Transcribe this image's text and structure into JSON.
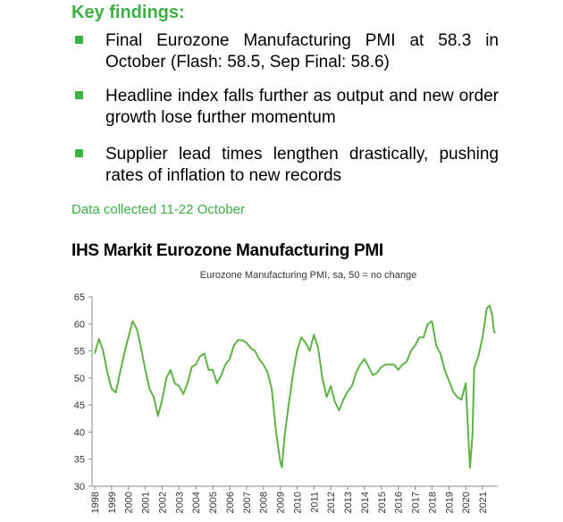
{
  "findings": {
    "heading": "Key findings:",
    "bullets": [
      "Final Eurozone Manufacturing PMI at 58.3 in October (Flash: 58.5, Sep Final: 58.6)",
      "Headline index falls further as output and new order growth lose further momentum",
      "Supplier lead times lengthen drastically, pushing rates of inflation to new records"
    ],
    "note": "Data collected 11-22 October"
  },
  "chart_data": {
    "type": "line",
    "title": "IHS Markit Eurozone Manufacturing PMI",
    "subtitle": "Eurozone Manufacturing PMI, sa, 50 = no change",
    "series": [
      {
        "name": "Eurozone Manufacturing PMI",
        "color": "#5fb246",
        "x": [
          1998.0,
          1998.25,
          1998.5,
          1998.75,
          1999.0,
          1999.25,
          1999.5,
          1999.75,
          2000.0,
          2000.25,
          2000.5,
          2000.75,
          2001.0,
          2001.25,
          2001.5,
          2001.75,
          2002.0,
          2002.25,
          2002.5,
          2002.75,
          2003.0,
          2003.25,
          2003.5,
          2003.75,
          2004.0,
          2004.25,
          2004.5,
          2004.75,
          2005.0,
          2005.25,
          2005.5,
          2005.75,
          2006.0,
          2006.25,
          2006.5,
          2006.75,
          2007.0,
          2007.25,
          2007.5,
          2007.75,
          2008.0,
          2008.25,
          2008.5,
          2008.75,
          2009.0,
          2009.1,
          2009.25,
          2009.5,
          2009.75,
          2010.0,
          2010.25,
          2010.5,
          2010.75,
          2011.0,
          2011.25,
          2011.5,
          2011.75,
          2012.0,
          2012.25,
          2012.5,
          2012.75,
          2013.0,
          2013.25,
          2013.5,
          2013.75,
          2014.0,
          2014.25,
          2014.5,
          2014.75,
          2015.0,
          2015.25,
          2015.5,
          2015.75,
          2016.0,
          2016.25,
          2016.5,
          2016.75,
          2017.0,
          2017.25,
          2017.5,
          2017.75,
          2018.0,
          2018.25,
          2018.5,
          2018.75,
          2019.0,
          2019.25,
          2019.5,
          2019.75,
          2020.0,
          2020.25,
          2020.4,
          2020.5,
          2020.75,
          2021.0,
          2021.25,
          2021.42,
          2021.58,
          2021.67,
          2021.75
        ],
        "values": [
          54.5,
          57.2,
          55.0,
          51.0,
          48.0,
          47.3,
          51.0,
          54.5,
          57.5,
          60.5,
          59.0,
          55.5,
          51.5,
          48.0,
          46.5,
          43.0,
          46.0,
          50.0,
          51.5,
          49.0,
          48.5,
          47.0,
          49.0,
          52.0,
          52.5,
          54.0,
          54.5,
          51.5,
          51.5,
          49.0,
          50.5,
          52.5,
          53.5,
          56.0,
          57.0,
          57.0,
          56.5,
          55.5,
          55.0,
          53.5,
          52.5,
          51.0,
          48.0,
          40.0,
          34.5,
          33.5,
          39.0,
          45.0,
          50.5,
          55.0,
          57.5,
          56.5,
          55.0,
          58.0,
          55.5,
          50.0,
          46.5,
          48.5,
          45.5,
          44.0,
          46.0,
          47.5,
          48.5,
          51.0,
          52.5,
          53.5,
          52.0,
          50.5,
          51.0,
          52.0,
          52.5,
          52.5,
          52.5,
          51.5,
          52.5,
          53.0,
          55.0,
          56.0,
          57.5,
          57.5,
          60.0,
          60.5,
          56.0,
          54.5,
          51.5,
          49.5,
          47.5,
          46.5,
          46.0,
          49.0,
          33.4,
          39.5,
          51.8,
          54.0,
          57.5,
          62.9,
          63.4,
          61.4,
          58.6,
          58.3
        ]
      }
    ],
    "xlim": [
      1998,
      2021.9
    ],
    "xticks": [
      1998,
      1999,
      2000,
      2001,
      2002,
      2003,
      2004,
      2005,
      2006,
      2007,
      2008,
      2009,
      2010,
      2011,
      2012,
      2013,
      2014,
      2015,
      2016,
      2017,
      2018,
      2019,
      2020,
      2021
    ],
    "ylim": [
      30,
      65
    ],
    "yticks": [
      30,
      35,
      40,
      45,
      50,
      55,
      60,
      65
    ]
  }
}
